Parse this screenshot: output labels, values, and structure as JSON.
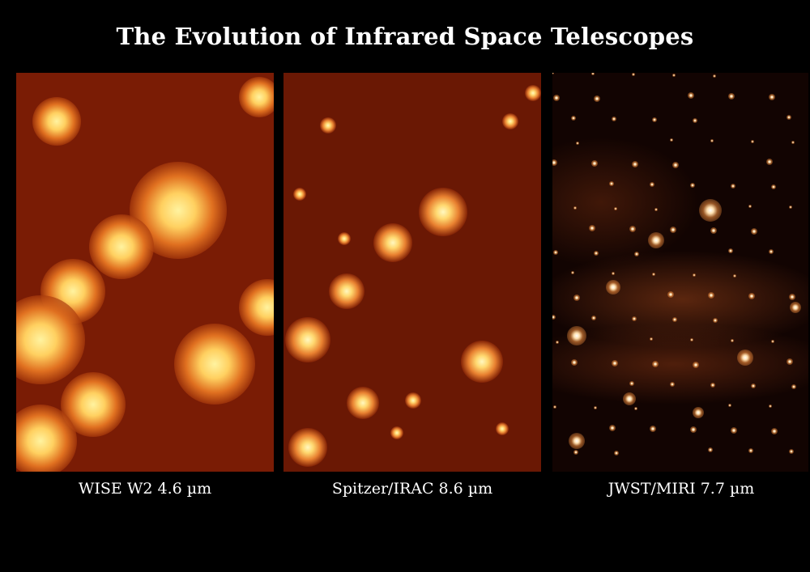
{
  "title": "The Evolution of Infrared Space Telescopes",
  "panels": [
    {
      "label": "WISE W2 4.6 µm"
    },
    {
      "label": "Spitzer/IRAC 8.6 µm"
    },
    {
      "label": "JWST/MIRI 7.7 µm"
    }
  ],
  "colors": {
    "background": "#000000",
    "text": "#ffffff",
    "field": "#7a1c05",
    "star": "#ffe890"
  }
}
